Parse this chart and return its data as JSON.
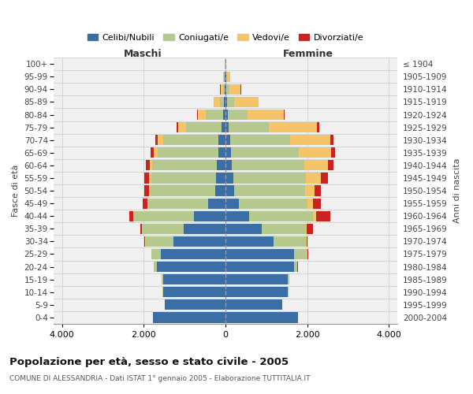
{
  "age_groups": [
    "0-4",
    "5-9",
    "10-14",
    "15-19",
    "20-24",
    "25-29",
    "30-34",
    "35-39",
    "40-44",
    "45-49",
    "50-54",
    "55-59",
    "60-64",
    "65-69",
    "70-74",
    "75-79",
    "80-84",
    "85-89",
    "90-94",
    "95-99",
    "100+"
  ],
  "birth_years": [
    "2000-2004",
    "1995-1999",
    "1990-1994",
    "1985-1989",
    "1980-1984",
    "1975-1979",
    "1970-1974",
    "1965-1969",
    "1960-1964",
    "1955-1959",
    "1950-1954",
    "1945-1949",
    "1940-1944",
    "1935-1939",
    "1930-1934",
    "1925-1929",
    "1920-1924",
    "1915-1919",
    "1910-1914",
    "1905-1909",
    "≤ 1904"
  ],
  "male_celibi": [
    1780,
    1480,
    1530,
    1530,
    1680,
    1580,
    1280,
    1020,
    780,
    420,
    260,
    240,
    210,
    180,
    170,
    90,
    60,
    35,
    20,
    15,
    5
  ],
  "male_coniugati": [
    3,
    4,
    8,
    25,
    70,
    230,
    680,
    1020,
    1480,
    1470,
    1570,
    1580,
    1580,
    1480,
    1350,
    870,
    420,
    110,
    35,
    18,
    8
  ],
  "male_vedovi": [
    1,
    1,
    1,
    1,
    4,
    4,
    4,
    8,
    8,
    18,
    35,
    55,
    70,
    90,
    140,
    190,
    190,
    140,
    70,
    25,
    4
  ],
  "male_divorziati": [
    1,
    1,
    1,
    1,
    4,
    8,
    18,
    45,
    95,
    115,
    125,
    115,
    95,
    75,
    55,
    45,
    25,
    12,
    8,
    4,
    2
  ],
  "fem_nubili": [
    1770,
    1380,
    1530,
    1530,
    1670,
    1670,
    1180,
    880,
    580,
    330,
    220,
    190,
    150,
    130,
    110,
    80,
    60,
    40,
    25,
    15,
    5
  ],
  "fem_coniugate": [
    3,
    4,
    8,
    25,
    90,
    330,
    780,
    1080,
    1570,
    1670,
    1720,
    1770,
    1770,
    1670,
    1470,
    980,
    480,
    180,
    70,
    25,
    12
  ],
  "fem_vedove": [
    1,
    1,
    1,
    1,
    4,
    8,
    18,
    35,
    70,
    140,
    240,
    380,
    580,
    780,
    980,
    1180,
    880,
    580,
    280,
    70,
    4
  ],
  "fem_divorziate": [
    1,
    1,
    1,
    1,
    4,
    8,
    25,
    145,
    340,
    195,
    155,
    175,
    145,
    95,
    75,
    55,
    25,
    18,
    8,
    4,
    2
  ],
  "colors": {
    "celibi": "#3a6ea5",
    "coniugati": "#b5c98e",
    "vedovi": "#f5c469",
    "divorziati": "#cc2222"
  },
  "xlim": 4200,
  "title": "Popolazione per età, sesso e stato civile - 2005",
  "subtitle": "COMUNE DI ALESSANDRIA - Dati ISTAT 1° gennaio 2005 - Elaborazione TUTTITALIA.IT",
  "xlabel_left": "Maschi",
  "xlabel_right": "Femmine",
  "ylabel_left": "Fasce di età",
  "ylabel_right": "Anni di nascita",
  "legend_labels": [
    "Celibi/Nubili",
    "Coniugati/e",
    "Vedovi/e",
    "Divorziati/e"
  ],
  "bg_color": "#ffffff",
  "plot_bg": "#f0f0f0",
  "grid_color": "#cccccc"
}
